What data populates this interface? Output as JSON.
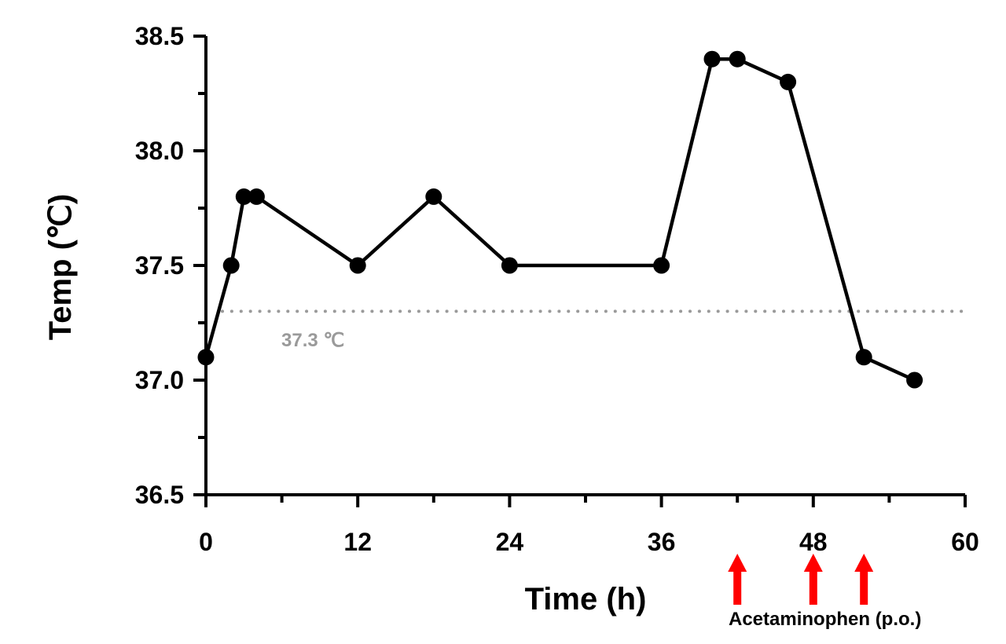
{
  "chart_data": {
    "type": "line",
    "title": "",
    "xlabel": "Time (h)",
    "ylabel": "Temp (℃)",
    "xlim": [
      0,
      60
    ],
    "ylim": [
      36.5,
      38.5
    ],
    "x_ticks": [
      0,
      12,
      24,
      36,
      48,
      60
    ],
    "x_tick_labels": [
      "0",
      "12",
      "24",
      "36",
      "48",
      "60"
    ],
    "y_ticks": [
      36.5,
      37.0,
      37.5,
      38.0,
      38.5
    ],
    "y_tick_labels": [
      "36.5",
      "37.0",
      "37.5",
      "38.0",
      "38.5"
    ],
    "grid": false,
    "series": [
      {
        "x": [
          0,
          2,
          3,
          4,
          12,
          18,
          24,
          36,
          40,
          42,
          46,
          52,
          56
        ],
        "y": [
          37.1,
          37.5,
          37.8,
          37.8,
          37.5,
          37.8,
          37.5,
          37.5,
          38.4,
          38.4,
          38.3,
          37.1,
          37.0
        ],
        "color": "#000000",
        "marker": "circle"
      }
    ],
    "reference_line": {
      "y": 37.3,
      "label": "37.3 ℃",
      "style": "dotted",
      "color": "#9a9a9a"
    },
    "annotations": {
      "label": "Acetaminophen (p.o.)",
      "arrow_x": [
        42,
        48,
        52
      ],
      "color": "#ff0000"
    }
  }
}
